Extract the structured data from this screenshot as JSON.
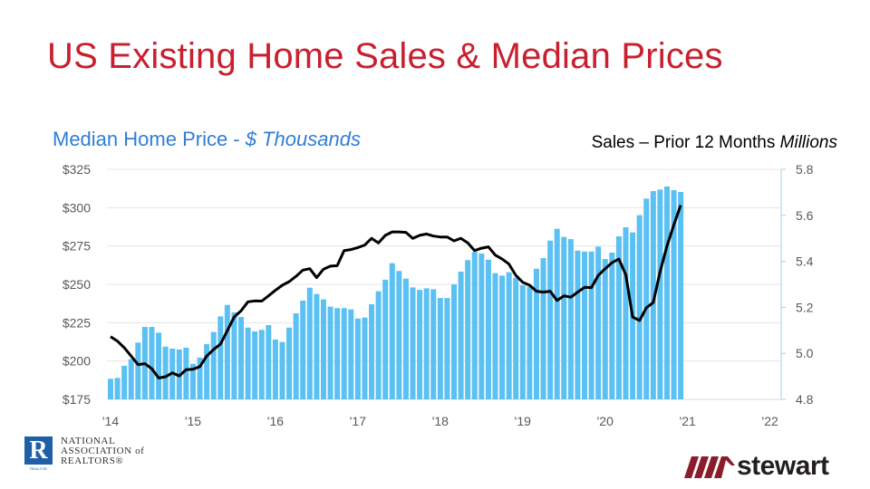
{
  "title": "US Existing Home Sales & Median Prices",
  "subtitle_left": {
    "main": "Median Home Price - ",
    "italic": "$ Thousands"
  },
  "subtitle_right": {
    "main": "Sales – Prior 12 Months ",
    "italic": "Millions"
  },
  "logos": {
    "nar": {
      "mark": "R",
      "sub": "REALTOR",
      "lines": [
        "NATIONAL",
        "ASSOCIATION of",
        "REALTORS®"
      ]
    },
    "stewart": {
      "word": "stewart"
    }
  },
  "chart_data": {
    "type": "bar+line",
    "x_ticks": [
      "'14",
      "'15",
      "'16",
      "'17",
      "'18",
      "'19",
      "'20",
      "'21",
      "'22"
    ],
    "x_range": [
      "2014-01",
      "2022-01"
    ],
    "y_left": {
      "label": "Median Home Price - $ Thousands",
      "range": [
        175,
        325
      ],
      "ticks": [
        "$175",
        "$200",
        "$225",
        "$250",
        "$275",
        "$300",
        "$325"
      ],
      "tick_values": [
        175,
        200,
        225,
        250,
        275,
        300,
        325
      ]
    },
    "y_right": {
      "label": "Sales – Prior 12 Months Millions",
      "range": [
        4.8,
        5.8
      ],
      "ticks": [
        "4.8",
        "5.0",
        "5.2",
        "5.4",
        "5.6",
        "5.8"
      ],
      "tick_values": [
        4.8,
        5.0,
        5.2,
        5.4,
        5.6,
        5.8
      ]
    },
    "grid": true,
    "start_month": "2014-01",
    "series": [
      {
        "type": "bar",
        "axis": "left",
        "color": "#5bc0f2",
        "values": [
          188.4,
          189.0,
          196.9,
          201.2,
          212.0,
          222.2,
          222.2,
          218.5,
          209.4,
          208.1,
          207.5,
          208.7,
          198.2,
          202.2,
          211.0,
          218.9,
          229.1,
          236.6,
          231.7,
          228.7,
          221.8,
          219.3,
          220.3,
          223.4,
          214.0,
          212.4,
          221.8,
          231.1,
          239.4,
          247.8,
          243.7,
          240.2,
          235.4,
          234.5,
          234.5,
          233.7,
          227.7,
          228.3,
          237.0,
          245.5,
          253.0,
          263.8,
          258.7,
          253.7,
          248.0,
          246.4,
          247.4,
          246.8,
          241.1,
          241.1,
          250.0,
          258.3,
          265.8,
          271.1,
          270.1,
          266.1,
          257.3,
          255.7,
          257.9,
          254.3,
          249.4,
          248.4,
          260.2,
          267.1,
          278.5,
          286.2,
          280.9,
          279.5,
          272.0,
          271.4,
          271.4,
          274.6,
          266.5,
          270.7,
          281.3,
          287.2,
          283.9,
          295.1,
          305.9,
          310.8,
          311.8,
          313.8,
          311.4,
          310.2
        ]
      },
      {
        "type": "line",
        "axis": "right",
        "color": "#000000",
        "values": [
          5.073,
          5.053,
          5.024,
          4.988,
          4.951,
          4.955,
          4.933,
          4.893,
          4.898,
          4.915,
          4.902,
          4.929,
          4.931,
          4.942,
          4.988,
          5.017,
          5.04,
          5.099,
          5.158,
          5.185,
          5.224,
          5.228,
          5.227,
          5.25,
          5.274,
          5.296,
          5.312,
          5.335,
          5.362,
          5.368,
          5.329,
          5.366,
          5.379,
          5.381,
          5.447,
          5.451,
          5.46,
          5.471,
          5.5,
          5.48,
          5.513,
          5.528,
          5.528,
          5.526,
          5.5,
          5.513,
          5.519,
          5.51,
          5.506,
          5.506,
          5.489,
          5.5,
          5.48,
          5.447,
          5.457,
          5.463,
          5.427,
          5.41,
          5.388,
          5.339,
          5.309,
          5.296,
          5.27,
          5.266,
          5.27,
          5.23,
          5.25,
          5.244,
          5.266,
          5.287,
          5.286,
          5.339,
          5.368,
          5.394,
          5.41,
          5.342,
          5.158,
          5.143,
          5.198,
          5.221,
          5.355,
          5.467,
          5.559,
          5.644
        ]
      }
    ]
  }
}
